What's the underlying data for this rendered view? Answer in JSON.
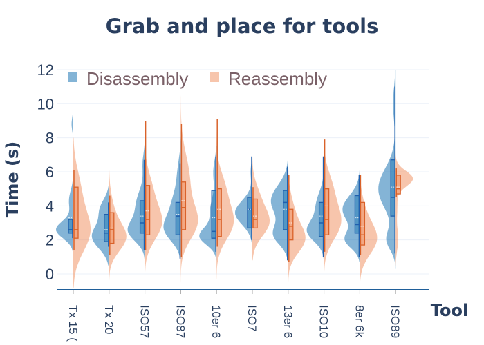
{
  "chart_data": {
    "type": "violin",
    "title": "Grab and place for tools",
    "xlabel": "Tool",
    "ylabel": "Time (s)",
    "ylim": [
      -1,
      12.2
    ],
    "yticks": [
      0,
      2,
      4,
      6,
      8,
      10,
      12
    ],
    "grid": true,
    "legend_position": "top-left",
    "categories": [
      "Tx 15 (",
      "Tx 20",
      "ISO57",
      "ISO87",
      "10er 6",
      "ISO7",
      "13er 6",
      "ISO10",
      "8er 6k",
      "ISO89"
    ],
    "series": [
      {
        "name": "Disassembly",
        "side": "negative",
        "fill": "#1f77b4",
        "line": "#1f5fad",
        "stats": [
          {
            "min": 2.1,
            "q1": 2.4,
            "median": 2.6,
            "q3": 3.2,
            "max": 3.2,
            "mean": 3.3,
            "lo": 1.1,
            "hi": 9.9,
            "modes": [
              [
                2.6,
                0.5,
                1
              ],
              [
                4.3,
                0.6,
                0.25
              ],
              [
                8.8,
                0.4,
                0.1
              ]
            ]
          },
          {
            "min": 1.6,
            "q1": 1.9,
            "median": 2.4,
            "q3": 3.5,
            "max": 4.2,
            "mean": 2.6,
            "lo": 0.5,
            "hi": 5.2,
            "modes": [
              [
                2.2,
                0.7,
                1
              ],
              [
                3.8,
                0.6,
                0.5
              ]
            ]
          },
          {
            "min": 1.4,
            "q1": 2.4,
            "median": 3.0,
            "q3": 4.3,
            "max": 6.7,
            "mean": 3.4,
            "lo": 0.4,
            "hi": 10.5,
            "modes": [
              [
                2.5,
                0.6,
                1
              ],
              [
                4,
                0.9,
                0.6
              ],
              [
                6.5,
                0.6,
                0.15
              ]
            ]
          },
          {
            "min": 0.9,
            "q1": 2.3,
            "median": 3.4,
            "q3": 4.2,
            "max": 6.5,
            "mean": 3.5,
            "lo": 0.9,
            "hi": 10.5,
            "modes": [
              [
                2.6,
                0.7,
                1
              ],
              [
                4,
                0.9,
                0.6
              ],
              [
                6,
                0.8,
                0.2
              ]
            ]
          },
          {
            "min": 1.3,
            "q1": 2.1,
            "median": 2.5,
            "q3": 4.9,
            "max": 6.9,
            "mean": 3.3,
            "lo": 0.8,
            "hi": 7.5,
            "modes": [
              [
                2.2,
                0.5,
                1
              ],
              [
                3.7,
                0.8,
                0.4
              ],
              [
                6,
                0.7,
                0.2
              ]
            ]
          },
          {
            "min": 2.0,
            "q1": 2.7,
            "median": 3.8,
            "q3": 4.5,
            "max": 6.9,
            "mean": 3.8,
            "lo": 1.0,
            "hi": 7.9,
            "modes": [
              [
                3.6,
                0.7,
                1
              ],
              [
                6,
                0.5,
                0.1
              ]
            ]
          },
          {
            "min": 0.8,
            "q1": 2.6,
            "median": 4.2,
            "q3": 4.9,
            "max": 6.3,
            "mean": 3.8,
            "lo": 0.6,
            "hi": 7.3,
            "modes": [
              [
                2.3,
                0.6,
                0.8
              ],
              [
                4.3,
                0.9,
                1
              ]
            ]
          },
          {
            "min": 1.0,
            "q1": 2.2,
            "median": 3.0,
            "q3": 4.2,
            "max": 6.9,
            "mean": 3.4,
            "lo": 0.5,
            "hi": 10.5,
            "modes": [
              [
                2.5,
                0.6,
                1
              ],
              [
                4,
                0.8,
                0.5
              ]
            ]
          },
          {
            "min": 1.0,
            "q1": 2.4,
            "median": 2.9,
            "q3": 4.6,
            "max": 5.8,
            "mean": 3.3,
            "lo": 0.7,
            "hi": 6.8,
            "modes": [
              [
                2,
                0.5,
                0.8
              ],
              [
                3.8,
                0.8,
                1
              ]
            ]
          },
          {
            "min": 1.2,
            "q1": 3.4,
            "median": 4.5,
            "q3": 6.7,
            "max": 11.0,
            "mean": 5.1,
            "lo": 0.3,
            "hi": 12.0,
            "modes": [
              [
                2,
                0.6,
                0.5
              ],
              [
                5,
                1.2,
                1
              ],
              [
                10,
                1,
                0.15
              ]
            ]
          }
        ]
      },
      {
        "name": "Reassembly",
        "side": "positive",
        "fill": "#ef8c5a",
        "line": "#d9622a",
        "stats": [
          {
            "min": 1.4,
            "q1": 2.1,
            "median": 2.6,
            "q3": 5.1,
            "max": 6.1,
            "mean": 3.1,
            "lo": -0.8,
            "hi": 8.0,
            "modes": [
              [
                2.5,
                1.2,
                1
              ],
              [
                5,
                1.2,
                0.4
              ]
            ]
          },
          {
            "min": 1.1,
            "q1": 1.8,
            "median": 2.6,
            "q3": 3.6,
            "max": 4.6,
            "mean": 2.7,
            "lo": -0.4,
            "hi": 8.3,
            "modes": [
              [
                2.1,
                0.8,
                1
              ],
              [
                3.5,
                1,
                0.3
              ]
            ]
          },
          {
            "min": 1.4,
            "q1": 2.3,
            "median": 3.2,
            "q3": 5.2,
            "max": 9.0,
            "mean": 3.7,
            "lo": -0.5,
            "hi": 10.5,
            "modes": [
              [
                3,
                1,
                1
              ],
              [
                5,
                1,
                0.4
              ]
            ]
          },
          {
            "min": 1.0,
            "q1": 2.6,
            "median": 3.9,
            "q3": 5.4,
            "max": 8.8,
            "mean": 4.3,
            "lo": -0.8,
            "hi": 10.5,
            "modes": [
              [
                3,
                1,
                1
              ],
              [
                5.5,
                1.5,
                0.6
              ]
            ]
          },
          {
            "min": 1.6,
            "q1": 2.2,
            "median": 3.2,
            "q3": 5.0,
            "max": 9.1,
            "mean": 3.8,
            "lo": -0.3,
            "hi": 10.5,
            "modes": [
              [
                3,
                1,
                1
              ],
              [
                5,
                1,
                0.5
              ]
            ]
          },
          {
            "min": 2.7,
            "q1": 2.7,
            "median": 3.2,
            "q3": 4.4,
            "max": 5.1,
            "mean": 3.4,
            "lo": 0.8,
            "hi": 6.9,
            "modes": [
              [
                3,
                0.8,
                1
              ],
              [
                4.5,
                0.8,
                0.4
              ]
            ]
          },
          {
            "min": 0.7,
            "q1": 2.0,
            "median": 2.8,
            "q3": 3.8,
            "max": 5.8,
            "mean": 3.0,
            "lo": -0.5,
            "hi": 9.5,
            "modes": [
              [
                2,
                0.8,
                1
              ],
              [
                3.5,
                1,
                0.4
              ]
            ]
          },
          {
            "min": 1.3,
            "q1": 2.3,
            "median": 3.2,
            "q3": 5.0,
            "max": 7.9,
            "mean": 4.0,
            "lo": -0.2,
            "hi": 10.5,
            "modes": [
              [
                3,
                1,
                1
              ],
              [
                5,
                1,
                0.5
              ]
            ]
          },
          {
            "min": 1.1,
            "q1": 1.7,
            "median": 2.3,
            "q3": 4.2,
            "max": 5.8,
            "mean": 2.8,
            "lo": -0.8,
            "hi": 7.8,
            "modes": [
              [
                2,
                0.9,
                1
              ],
              [
                3.5,
                1,
                0.3
              ]
            ]
          },
          {
            "min": 4.5,
            "q1": 4.7,
            "median": 5.0,
            "q3": 5.8,
            "max": 6.2,
            "mean": 5.1,
            "lo": 0.5,
            "hi": 8.7,
            "modes": [
              [
                5.6,
                0.45,
                1
              ],
              [
                2,
                0.6,
                0.15
              ],
              [
                4,
                0.8,
                0.1
              ]
            ]
          }
        ]
      }
    ]
  }
}
